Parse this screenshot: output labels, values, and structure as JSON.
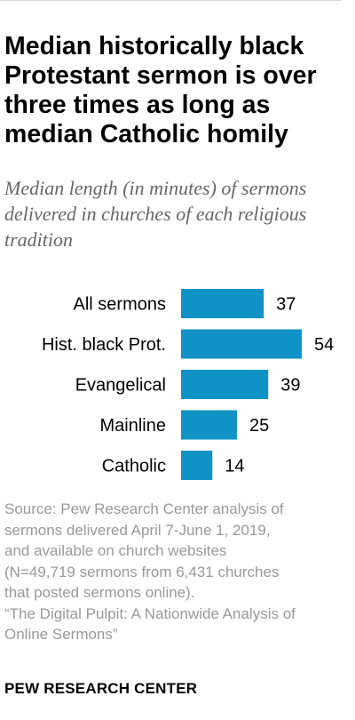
{
  "chart_data": {
    "type": "bar",
    "orientation": "horizontal",
    "title": "Median historically black Protestant sermon is over three times as long as median Catholic homily",
    "subtitle": "Median length (in minutes) of sermons delivered in churches of each religious tradition",
    "categories": [
      "All sermons",
      "Hist. black Prot.",
      "Evangelical",
      "Mainline",
      "Catholic"
    ],
    "values": [
      37,
      54,
      39,
      25,
      14
    ],
    "value_labels": [
      "37",
      "54",
      "39",
      "25",
      "14"
    ],
    "xlim": [
      0,
      54
    ],
    "grid": false,
    "legend": "none",
    "bar_color": "#0f93c6"
  },
  "source": {
    "lines": [
      "Source: Pew Research Center analysis of",
      "sermons delivered April 7-June 1, 2019,",
      "and available on church websites",
      "(N=49,719 sermons from 6,431 churches",
      "that posted sermons online).",
      "“The Digital Pulpit: A Nationwide Analysis of",
      "Online Sermons”"
    ]
  },
  "brand": "PEW RESEARCH CENTER"
}
